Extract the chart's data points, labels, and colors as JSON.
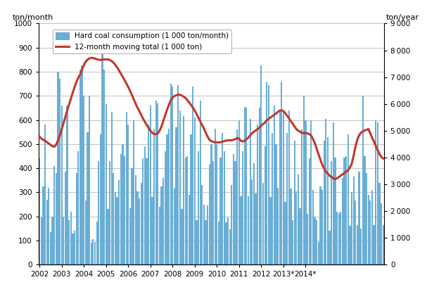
{
  "bar_color": "#6aaed6",
  "line_color": "#C0392B",
  "ylabel_left": "ton/month",
  "ylabel_right": "ton/year",
  "ylim_left": [
    0,
    1000
  ],
  "ylim_right": [
    0,
    9000
  ],
  "yticks_left": [
    0,
    100,
    200,
    300,
    400,
    500,
    600,
    700,
    800,
    900,
    1000
  ],
  "yticks_right": [
    0,
    1000,
    2000,
    3000,
    4000,
    5000,
    6000,
    7000,
    8000,
    9000
  ],
  "bar_label": "Hard coal consumption (1 000 ton/month)",
  "line_label": "12-month moving total (1 000 ton)",
  "x_tick_labels": [
    "2002",
    "2003",
    "2004",
    "2005",
    "2006",
    "2007",
    "2008",
    "2009",
    "2010",
    "2011",
    "2012",
    "2013*",
    "2014*"
  ],
  "bar_data": [
    440,
    195,
    325,
    580,
    270,
    320,
    135,
    200,
    410,
    380,
    800,
    770,
    660,
    200,
    385,
    660,
    185,
    220,
    130,
    140,
    380,
    470,
    810,
    825,
    700,
    265,
    550,
    700,
    90,
    105,
    95,
    180,
    430,
    540,
    895,
    810,
    665,
    230,
    430,
    635,
    380,
    300,
    280,
    350,
    460,
    500,
    450,
    635,
    580,
    235,
    400,
    600,
    370,
    305,
    275,
    340,
    440,
    490,
    440,
    580,
    660,
    280,
    560,
    680,
    670,
    240,
    325,
    360,
    470,
    540,
    565,
    750,
    740,
    320,
    570,
    745,
    640,
    230,
    615,
    445,
    450,
    290,
    540,
    740,
    610,
    185,
    470,
    680,
    330,
    250,
    185,
    245,
    415,
    500,
    430,
    565,
    500,
    180,
    445,
    545,
    470,
    175,
    195,
    145,
    330,
    460,
    430,
    560,
    600,
    285,
    470,
    655,
    650,
    285,
    605,
    355,
    420,
    295,
    580,
    650,
    825,
    340,
    490,
    755,
    745,
    280,
    545,
    660,
    500,
    320,
    640,
    760,
    635,
    260,
    545,
    640,
    315,
    185,
    515,
    305,
    375,
    235,
    560,
    700,
    600,
    210,
    440,
    600,
    310,
    200,
    185,
    95,
    325,
    310,
    515,
    605,
    530,
    140,
    430,
    590,
    445,
    220,
    215,
    220,
    360,
    445,
    450,
    540,
    160,
    300,
    365,
    265,
    165,
    385,
    150,
    700,
    450,
    380,
    290,
    265,
    310,
    165,
    600,
    590,
    340,
    255,
    165
  ],
  "line_data": [
    4780,
    4700,
    4660,
    4620,
    4570,
    4520,
    4470,
    4420,
    4400,
    4480,
    4640,
    4820,
    5050,
    5280,
    5520,
    5760,
    5980,
    6200,
    6430,
    6630,
    6830,
    6980,
    7100,
    7280,
    7450,
    7580,
    7650,
    7700,
    7720,
    7710,
    7690,
    7670,
    7650,
    7640,
    7650,
    7660,
    7660,
    7660,
    7640,
    7600,
    7540,
    7460,
    7360,
    7250,
    7130,
    7010,
    6890,
    6760,
    6630,
    6490,
    6330,
    6170,
    6010,
    5860,
    5730,
    5590,
    5450,
    5330,
    5210,
    5110,
    5000,
    4920,
    4870,
    4870,
    4900,
    5000,
    5160,
    5370,
    5570,
    5780,
    5960,
    6130,
    6240,
    6290,
    6320,
    6350,
    6340,
    6310,
    6270,
    6220,
    6140,
    6050,
    5960,
    5860,
    5750,
    5620,
    5480,
    5340,
    5210,
    5080,
    4920,
    4770,
    4660,
    4610,
    4580,
    4570,
    4560,
    4560,
    4570,
    4590,
    4610,
    4630,
    4640,
    4640,
    4640,
    4660,
    4690,
    4720,
    4700,
    4620,
    4600,
    4630,
    4680,
    4740,
    4830,
    4900,
    4960,
    5010,
    5060,
    5110,
    5190,
    5250,
    5300,
    5390,
    5440,
    5490,
    5540,
    5590,
    5640,
    5700,
    5750,
    5760,
    5730,
    5650,
    5560,
    5460,
    5360,
    5260,
    5160,
    5060,
    5000,
    4960,
    4920,
    4900,
    4920,
    4900,
    4870,
    4820,
    4690,
    4530,
    4330,
    4120,
    3920,
    3730,
    3590,
    3470,
    3400,
    3320,
    3270,
    3220,
    3190,
    3220,
    3270,
    3320,
    3370,
    3420,
    3470,
    3520,
    3630,
    3770,
    4070,
    4410,
    4660,
    4830,
    4930,
    4970,
    5010,
    5030,
    5060,
    4900,
    4740,
    4590,
    4430,
    4280,
    4130,
    4020,
    3960
  ],
  "background_color": "#FFFFFF",
  "grid_color": "#AAAAAA",
  "figsize": [
    6.07,
    4.18
  ],
  "dpi": 100
}
